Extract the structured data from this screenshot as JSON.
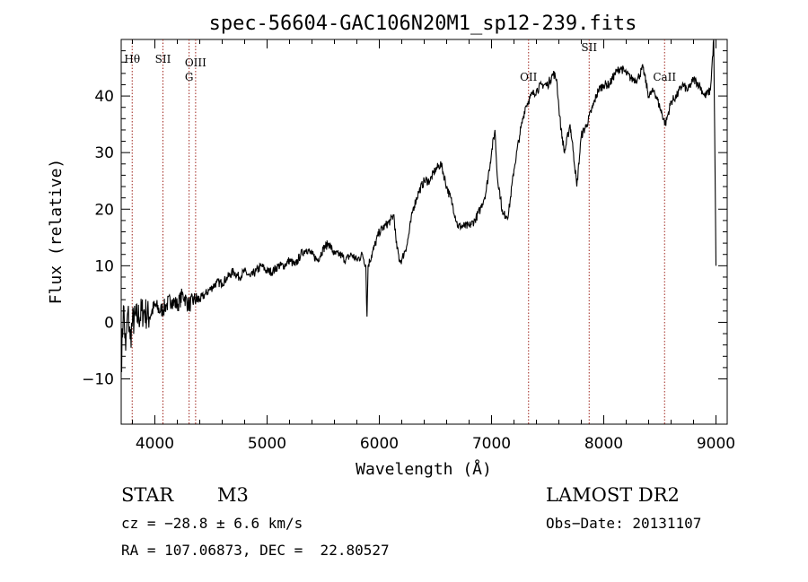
{
  "chart_data": {
    "type": "line",
    "title": "spec-56604-GAC106N20M1_sp12-239.fits",
    "xlabel": "Wavelength (Å)",
    "ylabel": "Flux (relative)",
    "xlim": [
      3700,
      9100
    ],
    "ylim": [
      -18,
      50
    ],
    "x_ticks": [
      4000,
      5000,
      6000,
      7000,
      8000,
      9000
    ],
    "y_ticks": [
      -10,
      0,
      10,
      20,
      30,
      40
    ],
    "x_tick_labels": [
      "4000",
      "5000",
      "6000",
      "7000",
      "8000",
      "9000"
    ],
    "y_tick_labels": [
      "−10",
      "0",
      "10",
      "20",
      "30",
      "40"
    ],
    "line_color": "#000000",
    "marker_color": "#a0261e",
    "series": [
      {
        "x": [
          3700,
          3720,
          3740,
          3760,
          3780,
          3800,
          3850,
          3900,
          3950,
          4000,
          4050,
          4100,
          4150,
          4200,
          4250,
          4300,
          4350,
          4400,
          4450,
          4500,
          4550,
          4600,
          4650,
          4700,
          4750,
          4800,
          4850,
          4900,
          4950,
          5000,
          5050,
          5100,
          5150,
          5200,
          5250,
          5300,
          5350,
          5400,
          5450,
          5500,
          5550,
          5600,
          5650,
          5700,
          5750,
          5800,
          5850,
          5880,
          5890,
          5900,
          5950,
          6000,
          6050,
          6100,
          6130,
          6150,
          6180,
          6200,
          6250,
          6300,
          6350,
          6400,
          6450,
          6500,
          6550,
          6600,
          6650,
          6700,
          6750,
          6800,
          6850,
          6900,
          6950,
          7000,
          7030,
          7050,
          7080,
          7100,
          7150,
          7200,
          7250,
          7300,
          7350,
          7400,
          7450,
          7500,
          7550,
          7580,
          7600,
          7620,
          7650,
          7700,
          7730,
          7760,
          7800,
          7850,
          7900,
          7950,
          8000,
          8050,
          8100,
          8150,
          8200,
          8250,
          8300,
          8350,
          8400,
          8450,
          8500,
          8550,
          8600,
          8650,
          8700,
          8750,
          8800,
          8850,
          8900,
          8950,
          8980,
          9000
        ],
        "y": [
          -8,
          3,
          -5,
          2,
          -3,
          0,
          1,
          2,
          1,
          3,
          2,
          3,
          4,
          3,
          5,
          3,
          4,
          4,
          5,
          6,
          7,
          7,
          8,
          9,
          8,
          9,
          8,
          9,
          10,
          9,
          9,
          10,
          10,
          11,
          10,
          12,
          13,
          12,
          11,
          13,
          14,
          12,
          12,
          11,
          12,
          11,
          12,
          10,
          1,
          10,
          13,
          16,
          17,
          18,
          19,
          14,
          11,
          11,
          14,
          20,
          23,
          25,
          25,
          27,
          28,
          24,
          21,
          17,
          17,
          17,
          18,
          20,
          23,
          30,
          34,
          26,
          22,
          19,
          19,
          27,
          33,
          38,
          40,
          41,
          42,
          42,
          44,
          43,
          38,
          34,
          30,
          35,
          30,
          24,
          33,
          35,
          38,
          41,
          42,
          42,
          44,
          45,
          44,
          43,
          43,
          45,
          40,
          41,
          38,
          35,
          39,
          40,
          42,
          41,
          43,
          42,
          40,
          41,
          50,
          10
        ]
      }
    ],
    "lines": [
      {
        "label": "Hθ",
        "x": 3798
      },
      {
        "label": "SII",
        "x": 4072
      },
      {
        "label": "OIII",
        "x": 4363
      },
      {
        "label": "G",
        "x": 4305
      },
      {
        "label": "OII",
        "x": 7330
      },
      {
        "label": "SII",
        "x": 7870
      },
      {
        "label": "CaII",
        "x": 8542
      }
    ]
  },
  "info": {
    "object_class": "STAR",
    "subclass": "M3",
    "survey": "LAMOST DR2",
    "cz": "cz = −28.8 ± 6.6 km/s",
    "obs_date": "Obs−Date: 20131107",
    "coords": "RA = 107.06873, DEC =  22.80527"
  }
}
